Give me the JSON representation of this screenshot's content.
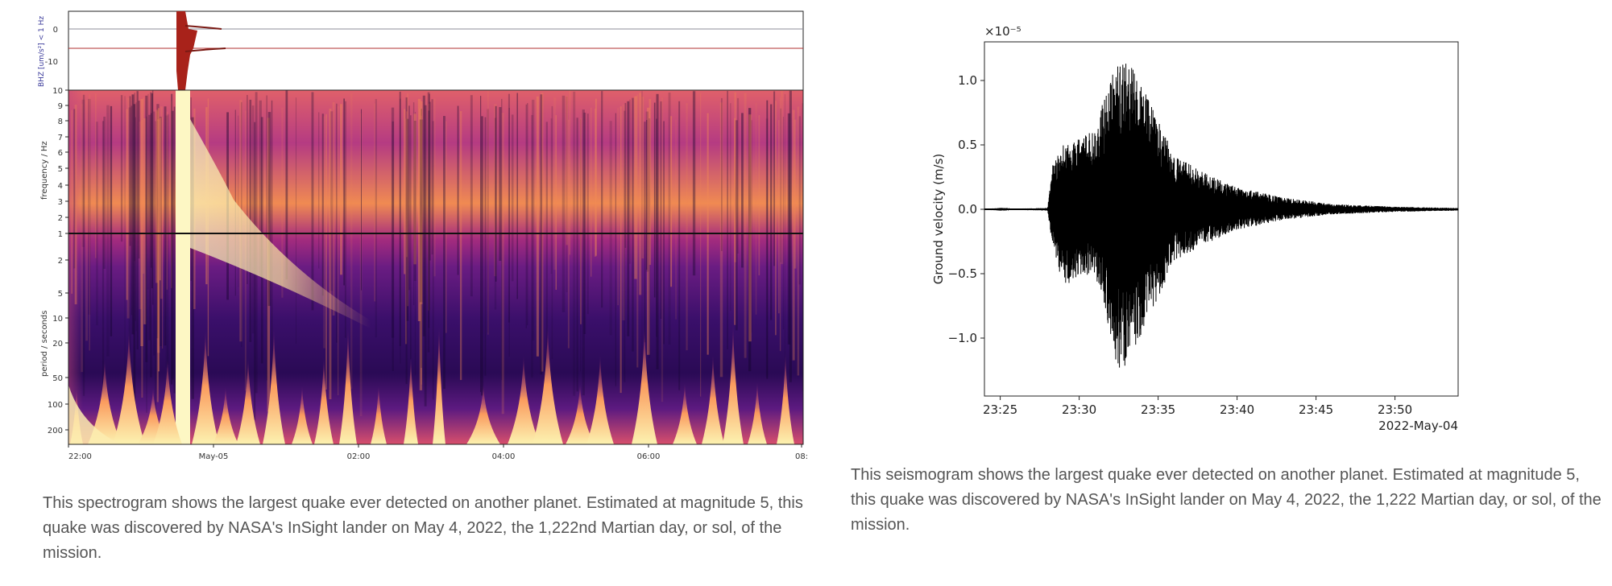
{
  "left_caption": "This spectrogram shows the largest quake ever detected on another planet. Estimated at magnitude 5, this quake was discovered by NASA's InSight lander on May 4, 2022, the 1,222nd Martian day, or sol, of the mission.",
  "right_caption": "This seismogram shows the largest quake ever detected on another planet. Estimated at magnitude 5, this quake was discovered by NASA's InSight lander on May 4, 2022, the 1,222 Martian day, or sol, of the mission.",
  "chart_data": [
    {
      "type": "heatmap",
      "title": "",
      "waveform_ylabel": "BHZ [um/s²] < 1 Hz",
      "waveform_yticks": [
        "0",
        "-10"
      ],
      "frequency_label": "frequency / Hz",
      "frequency_ticks": [
        "10",
        "9",
        "8",
        "7",
        "6",
        "5",
        "4",
        "3",
        "2",
        "1"
      ],
      "period_label": "period / seconds",
      "period_ticks": [
        "2",
        "5",
        "10",
        "20",
        "50",
        "100",
        "200"
      ],
      "x_ticks": [
        "22:00",
        "May-05",
        "02:00",
        "04:00",
        "06:00",
        "08:"
      ],
      "event_time": "23:28",
      "colormap": [
        "#000004",
        "#3b0f70",
        "#8c2981",
        "#de4968",
        "#fe9f6d",
        "#fcfdbf"
      ]
    },
    {
      "type": "line",
      "title": "",
      "xlabel": "",
      "ylabel": "Ground velocity (m/s)",
      "scale_label": "×10⁻⁵",
      "x_ticks": [
        "23:25",
        "23:30",
        "23:35",
        "23:40",
        "23:45",
        "23:50"
      ],
      "x_offset_label": "2022-May-04",
      "y_ticks": [
        "1.0",
        "0.5",
        "0.0",
        "−0.5",
        "−1.0"
      ],
      "xlim": [
        "23:24",
        "23:54"
      ],
      "ylim": [
        -1.45,
        1.3
      ],
      "series": [
        {
          "envelope_points": [
            {
              "x": "23:24:00",
              "max": 0.0,
              "min": 0.0
            },
            {
              "x": "23:28:00",
              "max": 0.01,
              "min": -0.01
            },
            {
              "x": "23:28:20",
              "max": 0.35,
              "min": -0.3
            },
            {
              "x": "23:29:00",
              "max": 0.5,
              "min": -0.6
            },
            {
              "x": "23:30:00",
              "max": 0.55,
              "min": -0.55
            },
            {
              "x": "23:31:00",
              "max": 0.62,
              "min": -0.5
            },
            {
              "x": "23:31:40",
              "max": 0.9,
              "min": -0.8
            },
            {
              "x": "23:32:30",
              "max": 1.18,
              "min": -1.32
            },
            {
              "x": "23:33:30",
              "max": 1.08,
              "min": -1.1
            },
            {
              "x": "23:35:00",
              "max": 0.7,
              "min": -0.7
            },
            {
              "x": "23:36:00",
              "max": 0.42,
              "min": -0.4
            },
            {
              "x": "23:38:00",
              "max": 0.28,
              "min": -0.27
            },
            {
              "x": "23:40:00",
              "max": 0.17,
              "min": -0.16
            },
            {
              "x": "23:43:00",
              "max": 0.09,
              "min": -0.08
            },
            {
              "x": "23:46:00",
              "max": 0.04,
              "min": -0.04
            },
            {
              "x": "23:50:00",
              "max": 0.02,
              "min": -0.02
            },
            {
              "x": "23:54:00",
              "max": 0.01,
              "min": -0.01
            }
          ]
        }
      ]
    }
  ]
}
